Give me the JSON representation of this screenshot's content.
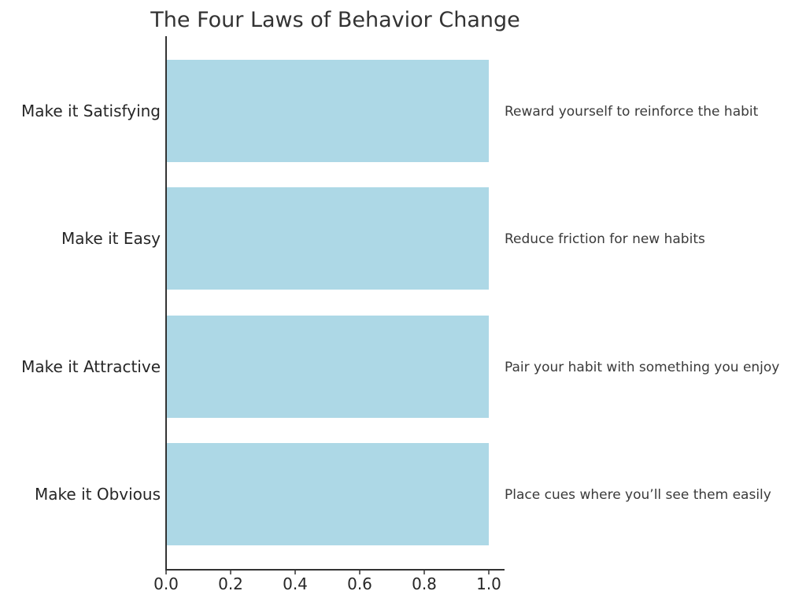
{
  "chart_data": {
    "type": "bar",
    "orientation": "horizontal",
    "title": "The Four Laws of Behavior Change",
    "xlabel": "",
    "ylabel": "",
    "categories": [
      "Make it Obvious",
      "Make it Attractive",
      "Make it Easy",
      "Make it Satisfying"
    ],
    "values": [
      1,
      1,
      1,
      1
    ],
    "annotations": [
      "Place cues where you’ll see them easily",
      "Pair your habit with something you enjoy",
      "Reduce friction for new habits",
      "Reward yourself to reinforce the habit"
    ],
    "xlim": [
      0,
      1.05
    ],
    "xticks": [
      0.0,
      0.2,
      0.4,
      0.6,
      0.8,
      1.0
    ],
    "xtick_labels": [
      "0.0",
      "0.2",
      "0.4",
      "0.6",
      "0.8",
      "1.0"
    ],
    "bar_color": "#add8e6",
    "grid": false,
    "legend": "none"
  }
}
